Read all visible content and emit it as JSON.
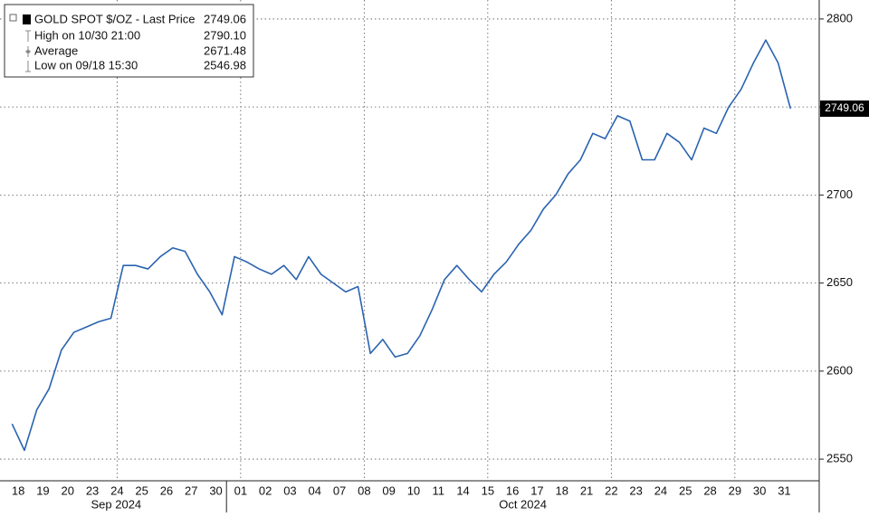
{
  "chart_data": {
    "type": "line",
    "legend_title": "GOLD SPOT $/OZ - Last Price",
    "legend_title_value": "2749.06",
    "legend_items": [
      {
        "label": "High on 10/30 21:00",
        "value": "2790.10"
      },
      {
        "label": "Average",
        "value": "2671.48"
      },
      {
        "label": "Low on 09/18 15:30",
        "value": "2546.98"
      }
    ],
    "months": [
      "Sep 2024",
      "Oct 2024"
    ],
    "categories": [
      "18",
      null,
      "19",
      null,
      "20",
      null,
      "23",
      null,
      "24",
      null,
      "25",
      null,
      "26",
      null,
      "27",
      null,
      "30",
      null,
      "01",
      null,
      "02",
      null,
      "03",
      null,
      "04",
      null,
      "07",
      null,
      "08",
      null,
      "09",
      null,
      "10",
      null,
      "11",
      null,
      "14",
      null,
      "15",
      null,
      "16",
      null,
      "17",
      null,
      "18",
      null,
      "21",
      null,
      "22",
      null,
      "23",
      null,
      "24",
      null,
      "25",
      null,
      "28",
      null,
      "29",
      null,
      "30",
      null,
      "31",
      null
    ],
    "series": [
      {
        "name": "GOLD SPOT $/OZ",
        "color": "#2a63b0",
        "values": [
          2570,
          2555,
          2578,
          2590,
          2612,
          2622,
          2625,
          2628,
          2630,
          2660,
          2660,
          2658,
          2665,
          2670,
          2668,
          2655,
          2645,
          2632,
          2665,
          2662,
          2658,
          2655,
          2660,
          2652,
          2665,
          2655,
          2650,
          2645,
          2648,
          2610,
          2618,
          2608,
          2610,
          2620,
          2635,
          2652,
          2660,
          2652,
          2645,
          2655,
          2662,
          2672,
          2680,
          2692,
          2700,
          2712,
          2720,
          2735,
          2732,
          2745,
          2742,
          2720,
          2720,
          2735,
          2730,
          2720,
          2738,
          2735,
          2750,
          2760,
          2775,
          2788,
          2775,
          2749.06
        ]
      }
    ],
    "ylim": [
      2537.7,
      2808.7
    ],
    "yticks": [
      2550,
      2600,
      2650,
      2700,
      2750,
      2800
    ],
    "grid": true
  }
}
